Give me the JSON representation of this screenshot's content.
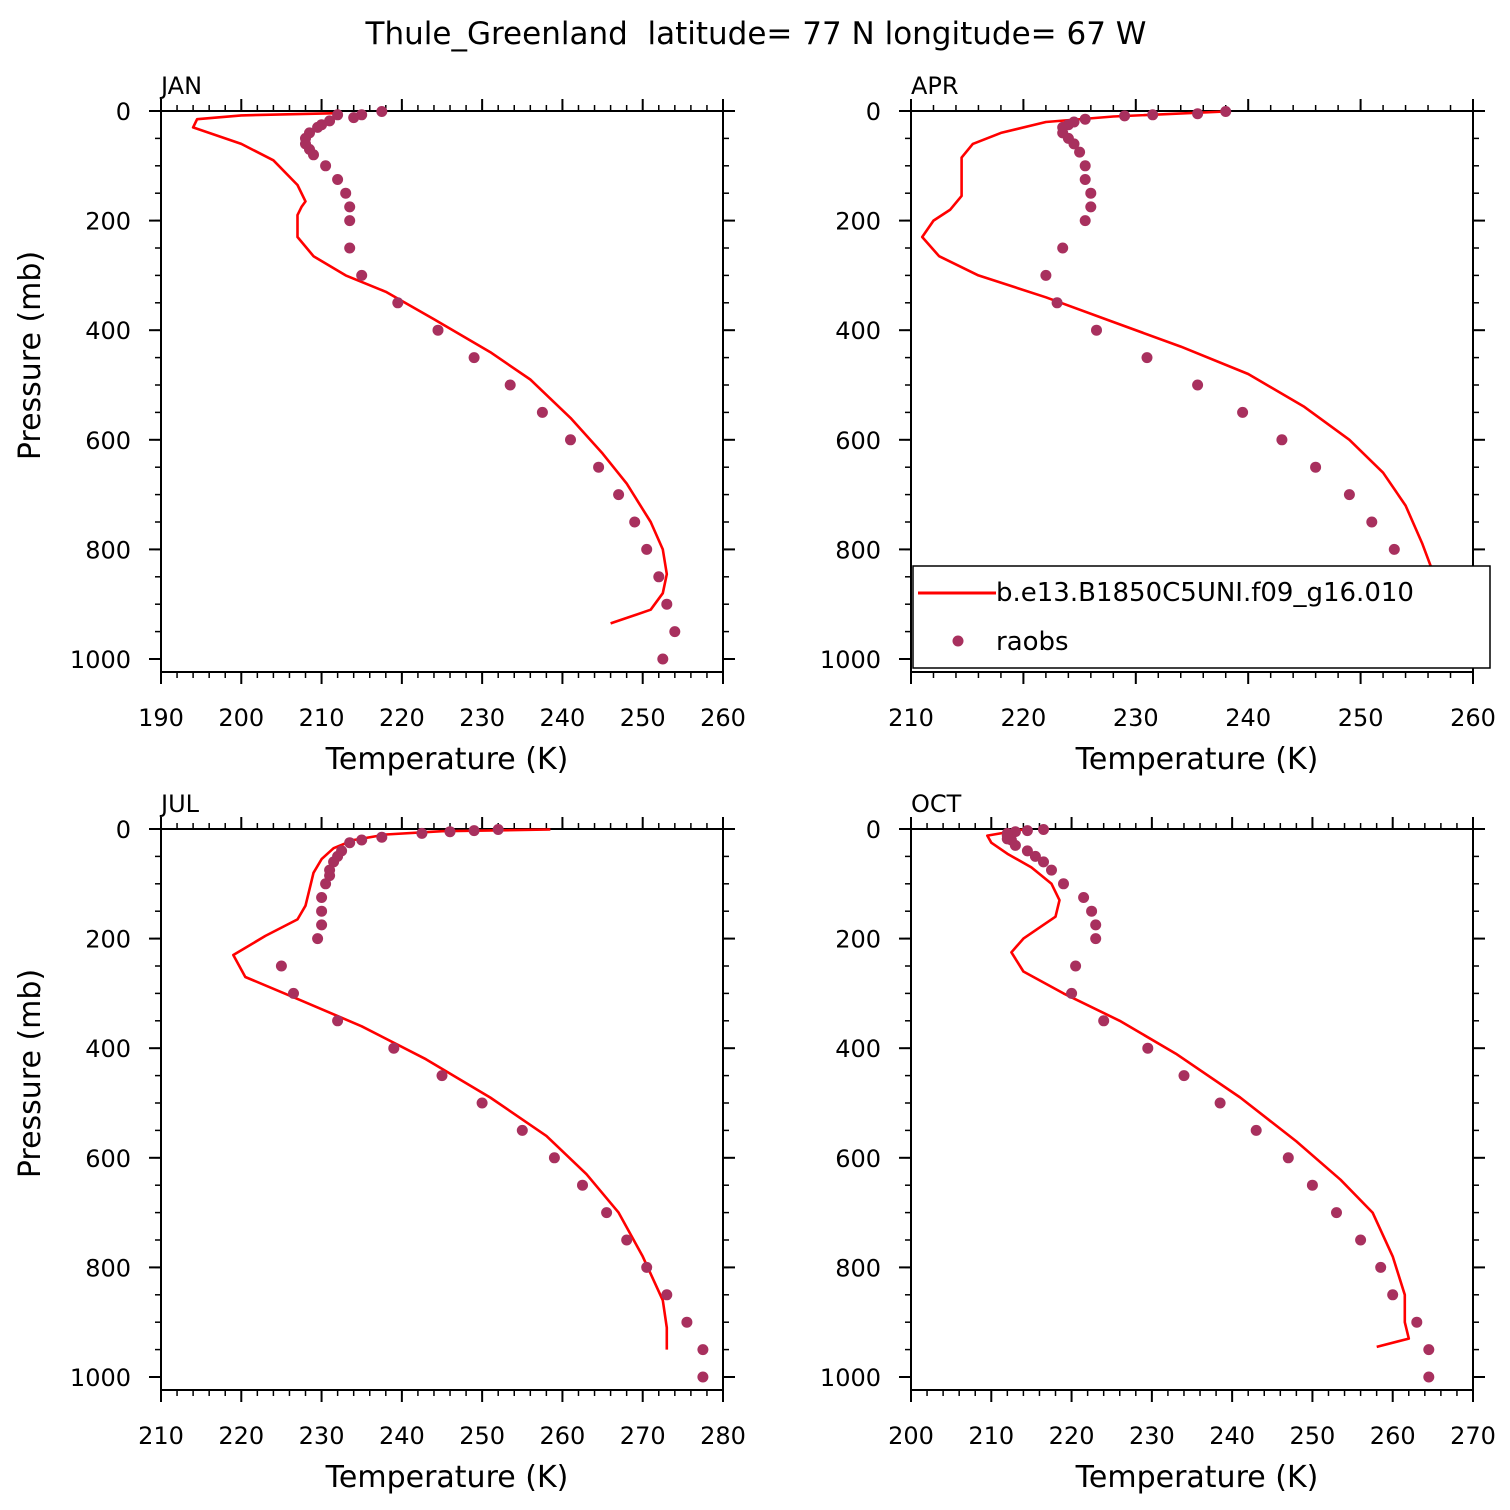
{
  "figure": {
    "title": "Thule_Greenland  latitude= 77 N longitude= 67 W"
  },
  "legend": {
    "model_label": "b.e13.B1850C5UNI.f09_g16.010",
    "obs_label": "raobs",
    "placement": "inside APR panel, lower-left"
  },
  "colors": {
    "model_line": "#ff0000",
    "obs_points": "#a8305e",
    "axes": "#000000"
  },
  "chart_data": [
    {
      "type": "line",
      "panel": "JAN",
      "xlabel": "Temperature (K)",
      "ylabel": "Pressure (mb)",
      "xlim": [
        190,
        260
      ],
      "ylim": [
        1000,
        0
      ],
      "y_inverted": true,
      "x_ticks": [
        190,
        200,
        210,
        220,
        230,
        240,
        250,
        260
      ],
      "y_ticks": [
        0,
        200,
        400,
        600,
        800,
        1000
      ],
      "series": [
        {
          "name": "b.e13.B1850C5UNI.f09_g16.010",
          "style": "line",
          "points": [
            [
              212,
              4
            ],
            [
              200,
              8
            ],
            [
              194.5,
              15
            ],
            [
              194,
              30
            ],
            [
              200,
              60
            ],
            [
              204,
              90
            ],
            [
              207,
              135
            ],
            [
              208,
              165
            ],
            [
              207.5,
              175
            ],
            [
              207,
              190
            ],
            [
              207,
              215
            ],
            [
              207,
              230
            ],
            [
              209,
              265
            ],
            [
              213,
              300
            ],
            [
              218,
              330
            ],
            [
              224,
              380
            ],
            [
              231,
              440
            ],
            [
              236,
              490
            ],
            [
              241,
              560
            ],
            [
              245,
              625
            ],
            [
              248,
              680
            ],
            [
              251,
              750
            ],
            [
              252.5,
              800
            ],
            [
              253,
              845
            ],
            [
              252.5,
              880
            ],
            [
              251,
              910
            ],
            [
              246,
              935
            ]
          ]
        },
        {
          "name": "raobs",
          "style": "points",
          "points": [
            [
              217.5,
              1
            ],
            [
              215,
              7
            ],
            [
              212,
              7
            ],
            [
              214,
              12
            ],
            [
              211,
              18
            ],
            [
              210,
              25
            ],
            [
              209.5,
              30
            ],
            [
              208.5,
              40
            ],
            [
              208,
              50
            ],
            [
              208,
              60
            ],
            [
              208.5,
              70
            ],
            [
              209,
              80
            ],
            [
              210.5,
              100
            ],
            [
              212,
              125
            ],
            [
              213,
              150
            ],
            [
              213.5,
              175
            ],
            [
              213.5,
              200
            ],
            [
              213.5,
              250
            ],
            [
              215,
              300
            ],
            [
              219.5,
              350
            ],
            [
              224.5,
              400
            ],
            [
              229,
              450
            ],
            [
              233.5,
              500
            ],
            [
              237.5,
              550
            ],
            [
              241,
              600
            ],
            [
              244.5,
              650
            ],
            [
              247,
              700
            ],
            [
              249,
              750
            ],
            [
              250.5,
              800
            ],
            [
              252,
              850
            ],
            [
              253,
              900
            ],
            [
              254,
              950
            ],
            [
              252.5,
              1000
            ]
          ]
        }
      ]
    },
    {
      "type": "line",
      "panel": "APR",
      "xlabel": "Temperature (K)",
      "ylabel": "",
      "xlim": [
        210,
        260
      ],
      "ylim": [
        1000,
        0
      ],
      "y_inverted": true,
      "x_ticks": [
        210,
        220,
        230,
        240,
        250,
        260
      ],
      "y_ticks": [
        0,
        200,
        400,
        600,
        800,
        1000
      ],
      "series": [
        {
          "name": "b.e13.B1850C5UNI.f09_g16.010",
          "style": "line",
          "points": [
            [
              238,
              1
            ],
            [
              228,
              10
            ],
            [
              222,
              20
            ],
            [
              218,
              40
            ],
            [
              215.5,
              60
            ],
            [
              214.5,
              85
            ],
            [
              214.5,
              100
            ],
            [
              214.5,
              130
            ],
            [
              214.5,
              155
            ],
            [
              213.5,
              180
            ],
            [
              212,
              200
            ],
            [
              211,
              230
            ],
            [
              212.5,
              265
            ],
            [
              216,
              300
            ],
            [
              222,
              340
            ],
            [
              228,
              385
            ],
            [
              234,
              430
            ],
            [
              240,
              480
            ],
            [
              245,
              540
            ],
            [
              249,
              600
            ],
            [
              252,
              660
            ],
            [
              254,
              720
            ],
            [
              255.5,
              790
            ],
            [
              256.5,
              845
            ],
            [
              256,
              900
            ],
            [
              255,
              925
            ],
            [
              252.5,
              950
            ]
          ]
        },
        {
          "name": "raobs",
          "style": "points",
          "points": [
            [
              238,
              1
            ],
            [
              235.5,
              5
            ],
            [
              231.5,
              7
            ],
            [
              229,
              9
            ],
            [
              225.5,
              15
            ],
            [
              224.5,
              20
            ],
            [
              224,
              25
            ],
            [
              223.5,
              30
            ],
            [
              223.5,
              40
            ],
            [
              224,
              50
            ],
            [
              224.5,
              60
            ],
            [
              225,
              75
            ],
            [
              225.5,
              100
            ],
            [
              225.5,
              125
            ],
            [
              226,
              150
            ],
            [
              226,
              175
            ],
            [
              225.5,
              200
            ],
            [
              223.5,
              250
            ],
            [
              222,
              300
            ],
            [
              223,
              350
            ],
            [
              226.5,
              400
            ],
            [
              231,
              450
            ],
            [
              235.5,
              500
            ],
            [
              239.5,
              550
            ],
            [
              243,
              600
            ],
            [
              246,
              650
            ],
            [
              249,
              700
            ],
            [
              251,
              750
            ],
            [
              253,
              800
            ],
            [
              254,
              850
            ],
            [
              256.5,
              900
            ],
            [
              257,
              950
            ],
            [
              257,
              1000
            ]
          ]
        }
      ]
    },
    {
      "type": "line",
      "panel": "JUL",
      "xlabel": "Temperature (K)",
      "ylabel": "Pressure (mb)",
      "xlim": [
        210,
        280
      ],
      "ylim": [
        1000,
        0
      ],
      "y_inverted": true,
      "x_ticks": [
        210,
        220,
        230,
        240,
        250,
        260,
        270,
        280
      ],
      "y_ticks": [
        0,
        200,
        400,
        600,
        800,
        1000
      ],
      "series": [
        {
          "name": "b.e13.B1850C5UNI.f09_g16.010",
          "style": "line",
          "points": [
            [
              258.5,
              1
            ],
            [
              245,
              4
            ],
            [
              238,
              10
            ],
            [
              234,
              20
            ],
            [
              231.5,
              35
            ],
            [
              230,
              55
            ],
            [
              229,
              80
            ],
            [
              228.5,
              110
            ],
            [
              228,
              140
            ],
            [
              227,
              165
            ],
            [
              223,
              195
            ],
            [
              219,
              230
            ],
            [
              220.5,
              270
            ],
            [
              227,
              310
            ],
            [
              235,
              360
            ],
            [
              243,
              420
            ],
            [
              251,
              490
            ],
            [
              258,
              560
            ],
            [
              263,
              630
            ],
            [
              267,
              700
            ],
            [
              270,
              780
            ],
            [
              272.5,
              860
            ],
            [
              273,
              910
            ],
            [
              273,
              950
            ]
          ]
        },
        {
          "name": "raobs",
          "style": "points",
          "points": [
            [
              252,
              1
            ],
            [
              249,
              3
            ],
            [
              246,
              5
            ],
            [
              242.5,
              8
            ],
            [
              237.5,
              15
            ],
            [
              235,
              20
            ],
            [
              233.5,
              25
            ],
            [
              232.5,
              40
            ],
            [
              232,
              50
            ],
            [
              231.5,
              60
            ],
            [
              231,
              75
            ],
            [
              231,
              85
            ],
            [
              230.5,
              100
            ],
            [
              230,
              125
            ],
            [
              230,
              150
            ],
            [
              230,
              175
            ],
            [
              229.5,
              200
            ],
            [
              225,
              250
            ],
            [
              226.5,
              300
            ],
            [
              232,
              350
            ],
            [
              239,
              400
            ],
            [
              245,
              450
            ],
            [
              250,
              500
            ],
            [
              255,
              550
            ],
            [
              259,
              600
            ],
            [
              262.5,
              650
            ],
            [
              265.5,
              700
            ],
            [
              268,
              750
            ],
            [
              270.5,
              800
            ],
            [
              273,
              850
            ],
            [
              275.5,
              900
            ],
            [
              277.5,
              950
            ],
            [
              277.5,
              1000
            ]
          ]
        }
      ]
    },
    {
      "type": "line",
      "panel": "OCT",
      "xlabel": "Temperature (K)",
      "ylabel": "",
      "xlim": [
        200,
        270
      ],
      "ylim": [
        1000,
        0
      ],
      "y_inverted": true,
      "x_ticks": [
        200,
        210,
        220,
        230,
        240,
        250,
        260,
        270
      ],
      "y_ticks": [
        0,
        200,
        400,
        600,
        800,
        1000
      ],
      "series": [
        {
          "name": "b.e13.B1850C5UNI.f09_g16.010",
          "style": "line",
          "points": [
            [
              214,
              1
            ],
            [
              209.5,
              12
            ],
            [
              210,
              25
            ],
            [
              212,
              45
            ],
            [
              215,
              70
            ],
            [
              217.5,
              100
            ],
            [
              218.5,
              130
            ],
            [
              218,
              160
            ],
            [
              216,
              180
            ],
            [
              214,
              200
            ],
            [
              212.5,
              225
            ],
            [
              214,
              260
            ],
            [
              219,
              300
            ],
            [
              226,
              350
            ],
            [
              233,
              410
            ],
            [
              241,
              490
            ],
            [
              248,
              570
            ],
            [
              253.5,
              640
            ],
            [
              257.5,
              700
            ],
            [
              260,
              780
            ],
            [
              261.5,
              850
            ],
            [
              261.5,
              900
            ],
            [
              262,
              930
            ],
            [
              258,
              945
            ]
          ]
        },
        {
          "name": "raobs",
          "style": "points",
          "points": [
            [
              216.5,
              1
            ],
            [
              214.5,
              3
            ],
            [
              213,
              5
            ],
            [
              212,
              8
            ],
            [
              212,
              12
            ],
            [
              212,
              18
            ],
            [
              212.5,
              20
            ],
            [
              213,
              30
            ],
            [
              214.5,
              40
            ],
            [
              215.5,
              50
            ],
            [
              216.5,
              60
            ],
            [
              217.5,
              75
            ],
            [
              219,
              100
            ],
            [
              221.5,
              125
            ],
            [
              222.5,
              150
            ],
            [
              223,
              175
            ],
            [
              223,
              200
            ],
            [
              220.5,
              250
            ],
            [
              220,
              300
            ],
            [
              224,
              350
            ],
            [
              229.5,
              400
            ],
            [
              234,
              450
            ],
            [
              238.5,
              500
            ],
            [
              243,
              550
            ],
            [
              247,
              600
            ],
            [
              250,
              650
            ],
            [
              253,
              700
            ],
            [
              256,
              750
            ],
            [
              258.5,
              800
            ],
            [
              260,
              850
            ],
            [
              263,
              900
            ],
            [
              264.5,
              950
            ],
            [
              264.5,
              1000
            ]
          ]
        }
      ]
    }
  ]
}
